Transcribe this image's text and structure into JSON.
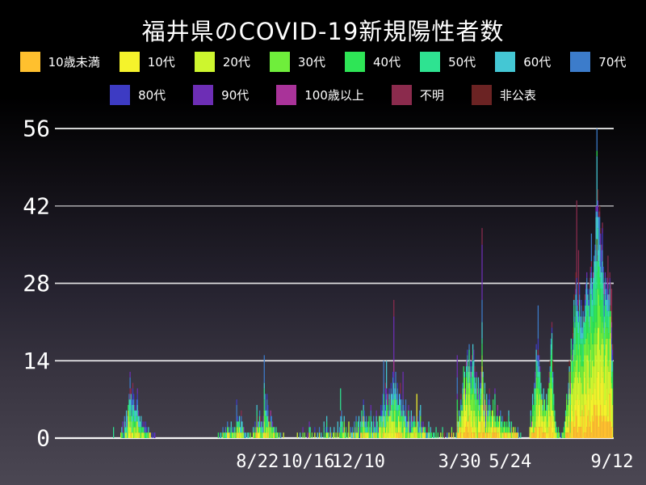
{
  "title": "福井県のCOVID-19新規陽性者数",
  "legend": {
    "rows": [
      8,
      5
    ],
    "groups": [
      {
        "label": "10歳未満",
        "color": "#FFC02E"
      },
      {
        "label": "10代",
        "color": "#F5F32B"
      },
      {
        "label": "20代",
        "color": "#CDF62E"
      },
      {
        "label": "30代",
        "color": "#6FEE3B"
      },
      {
        "label": "40代",
        "color": "#2EE556"
      },
      {
        "label": "50代",
        "color": "#2EE391"
      },
      {
        "label": "60代",
        "color": "#44C7D4"
      },
      {
        "label": "70代",
        "color": "#3C7CCB"
      },
      {
        "label": "80代",
        "color": "#3D3BC3"
      },
      {
        "label": "90代",
        "color": "#6D2EB5"
      },
      {
        "label": "100歳以上",
        "color": "#A93399"
      },
      {
        "label": "不明",
        "color": "#8B2B4D"
      },
      {
        "label": "非公表",
        "color": "#6B2323"
      }
    ]
  },
  "colors": {
    "grid": "#FFFFFF",
    "text": "#FFFFFF",
    "background_top": "#000000",
    "background_bottom": "#4B4753"
  },
  "chart_data": {
    "type": "bar",
    "stacked": true,
    "title": "福井県のCOVID-19新規陽性者数",
    "xlabel": "",
    "ylabel": "",
    "ylim": [
      0,
      56
    ],
    "y_ticks": [
      0,
      14,
      28,
      42,
      56
    ],
    "x_tick_labels": [
      "8/22",
      "10/16",
      "12/10",
      "3/30",
      "5/24",
      "9/12"
    ],
    "x_tick_days": [
      157,
      212,
      267,
      377,
      432,
      543
    ],
    "num_days": 544,
    "legend_position": "top",
    "grid": "horizontal",
    "stack_order": "youngest-at-bottom",
    "daily_totals_clusters": [
      {
        "start": 0,
        "values": [
          2
        ]
      },
      {
        "start": 8,
        "values": [
          1,
          2,
          3,
          2,
          4,
          3,
          5,
          4,
          6,
          8,
          12,
          9,
          7,
          10,
          8,
          6,
          5,
          7,
          9,
          5,
          4,
          3,
          4,
          3,
          2,
          3,
          2,
          3,
          2,
          1,
          2,
          1,
          1,
          0,
          1,
          0,
          1,
          1
        ]
      },
      {
        "start": 114,
        "values": [
          1,
          0,
          1,
          1,
          0,
          2,
          1,
          1,
          2,
          1,
          3,
          2,
          1,
          2,
          3,
          2,
          1,
          2,
          2,
          1,
          7,
          4,
          3,
          4,
          2,
          5,
          3,
          2,
          2,
          1,
          1,
          0,
          1,
          1,
          0,
          1
        ]
      },
      {
        "start": 152,
        "values": [
          2,
          1,
          3,
          2,
          6,
          4,
          3,
          5,
          4,
          3,
          2,
          4,
          15,
          8,
          5,
          8,
          6,
          4,
          3,
          5,
          4,
          3,
          2,
          2,
          1,
          2,
          1,
          1,
          0,
          1,
          1,
          0,
          0,
          1
        ]
      },
      {
        "start": 200,
        "values": [
          1,
          0,
          0,
          1,
          0,
          0,
          2,
          0,
          1,
          0,
          0,
          1,
          0,
          3,
          2,
          0,
          1,
          0,
          0,
          2,
          0,
          0,
          1,
          0,
          2,
          0,
          1,
          0,
          0,
          3,
          0,
          2,
          4,
          2,
          1,
          0,
          2,
          1,
          0,
          1,
          2,
          0,
          1,
          0,
          3,
          0,
          2,
          9,
          5,
          3,
          2,
          4,
          1,
          2,
          0,
          1,
          3,
          0,
          2,
          1
        ]
      },
      {
        "start": 260,
        "values": [
          2,
          1,
          3,
          2,
          4,
          2,
          3,
          4,
          2,
          3,
          5,
          4,
          7,
          5,
          3,
          4,
          2,
          3,
          4,
          2,
          6,
          3,
          2,
          4,
          3,
          2,
          5,
          3,
          2,
          4
        ]
      },
      {
        "start": 290,
        "values": [
          4,
          6,
          5,
          8,
          14,
          6,
          10,
          14,
          8,
          5,
          9,
          7,
          10,
          8,
          12,
          25,
          9,
          12,
          8,
          10,
          6,
          8,
          10,
          7,
          5,
          12,
          6,
          4,
          7,
          5,
          3,
          6,
          4,
          3,
          5,
          4,
          3,
          4,
          3,
          2,
          8,
          4,
          3,
          5,
          6,
          3,
          2,
          3,
          2,
          2,
          1,
          2,
          1,
          3,
          1,
          2,
          1,
          0,
          1,
          1
        ]
      },
      {
        "start": 350,
        "values": [
          0,
          2,
          0,
          1,
          0,
          0,
          1,
          0,
          2,
          0,
          1,
          0,
          0,
          1,
          0,
          1,
          0,
          0,
          2,
          0,
          1,
          0,
          0,
          1
        ]
      },
      {
        "start": 374,
        "values": [
          15,
          3,
          5,
          4,
          8,
          6,
          10,
          13,
          12,
          9,
          14,
          16,
          13,
          17,
          14,
          12,
          15,
          17,
          16,
          13,
          10,
          12,
          9,
          11,
          8,
          10,
          12,
          38,
          12,
          8,
          10,
          6,
          8,
          5,
          7,
          9,
          6,
          4,
          5,
          7,
          4,
          9,
          3,
          4,
          6,
          3,
          4,
          5,
          3,
          4,
          2,
          3,
          4,
          2,
          3,
          2,
          5,
          3,
          2,
          3,
          1,
          2,
          1,
          2,
          1,
          1,
          2,
          1,
          0,
          1
        ]
      },
      {
        "start": 453,
        "values": [
          2,
          5,
          3,
          8,
          6,
          10,
          12,
          17,
          15,
          24,
          15,
          13,
          10,
          8,
          6,
          9,
          7,
          5,
          8,
          6,
          10,
          12,
          14,
          18,
          21,
          14,
          8,
          5,
          3,
          2,
          1,
          2,
          1,
          0,
          1,
          1
        ]
      },
      {
        "start": 489,
        "values": [
          1,
          2,
          3,
          5,
          8,
          6,
          10,
          14,
          12,
          18,
          15,
          20,
          26,
          22,
          30,
          43,
          25,
          34,
          28,
          22,
          25,
          20,
          24,
          22,
          26,
          28,
          30,
          27,
          25,
          29,
          31,
          37,
          28,
          30,
          33,
          35,
          42,
          56,
          45,
          41,
          42,
          38,
          35,
          39,
          31,
          28,
          30,
          27,
          29,
          33,
          26,
          30,
          28,
          27,
          17
        ]
      }
    ],
    "age_mix_early": [
      0.02,
      0.05,
      0.16,
      0.14,
      0.14,
      0.14,
      0.12,
      0.1,
      0.07,
      0.035,
      0.005,
      0.015,
      0.005
    ],
    "age_mix_late": [
      0.11,
      0.14,
      0.2,
      0.16,
      0.13,
      0.09,
      0.06,
      0.04,
      0.025,
      0.015,
      0.005,
      0.015,
      0.01
    ],
    "late_era_start": 374,
    "top_overrides": {
      "18": [
        [
          9,
          1
        ],
        [
          7,
          2
        ]
      ],
      "164": [
        [
          7,
          5
        ]
      ],
      "247": [
        [
          5,
          4
        ]
      ],
      "294": [
        [
          7,
          5
        ]
      ],
      "297": [
        [
          6,
          5
        ]
      ],
      "305": [
        [
          11,
          3
        ],
        [
          9,
          8
        ],
        [
          10,
          2
        ]
      ],
      "315": [
        [
          9,
          4
        ]
      ],
      "330": [
        [
          1,
          8
        ]
      ],
      "374": [
        [
          9,
          4
        ],
        [
          7,
          3
        ]
      ],
      "401": [
        [
          11,
          3
        ],
        [
          9,
          10
        ],
        [
          7,
          4
        ]
      ],
      "462": [
        [
          7,
          6
        ],
        [
          8,
          2
        ]
      ],
      "504": [
        [
          11,
          14
        ]
      ],
      "506": [
        [
          11,
          10
        ]
      ],
      "520": [
        [
          7,
          5
        ]
      ],
      "526": [
        [
          7,
          4
        ],
        [
          4,
          1
        ],
        [
          6,
          9
        ],
        [
          9,
          1
        ],
        [
          6,
          5
        ]
      ],
      "538": [
        [
          11,
          5
        ]
      ],
      "541": [
        [
          11,
          4
        ]
      ],
      "542": [
        [
          11,
          6
        ]
      ]
    }
  }
}
